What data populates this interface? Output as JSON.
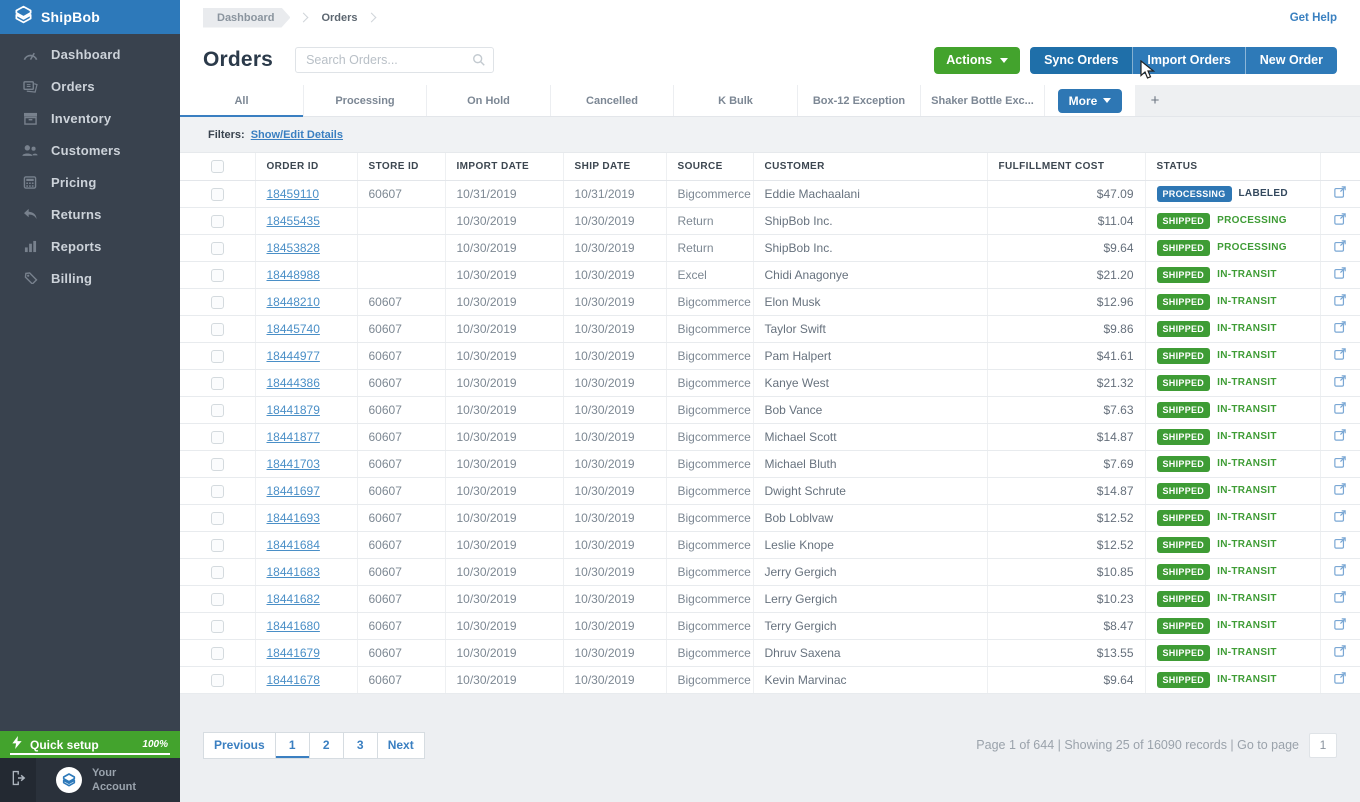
{
  "brand": {
    "name": "ShipBob"
  },
  "colors": {
    "brand_blue": "#2d79ba",
    "sidebar_dark": "#39424e",
    "green": "#43a32d",
    "badge_green": "#3e9c35",
    "badge_blue": "#2e77b4",
    "link_blue": "#3a80c0",
    "tab_underline": "#3a7fc1",
    "bg_gray": "#edeff2"
  },
  "sidebar": {
    "items": [
      {
        "label": "Dashboard",
        "icon": "gauge-icon"
      },
      {
        "label": "Orders",
        "icon": "orders-icon"
      },
      {
        "label": "Inventory",
        "icon": "inventory-icon"
      },
      {
        "label": "Customers",
        "icon": "customers-icon"
      },
      {
        "label": "Pricing",
        "icon": "pricing-icon"
      },
      {
        "label": "Returns",
        "icon": "returns-icon"
      },
      {
        "label": "Reports",
        "icon": "reports-icon"
      },
      {
        "label": "Billing",
        "icon": "billing-icon"
      }
    ],
    "quick_setup": {
      "label": "Quick setup",
      "progress": "100%"
    },
    "account": {
      "line1": "Your",
      "line2": "Account"
    }
  },
  "topbar": {
    "breadcrumb": {
      "first": "Dashboard",
      "current": "Orders"
    },
    "get_help": "Get Help"
  },
  "header": {
    "title": "Orders",
    "search_placeholder": "Search Orders...",
    "actions_label": "Actions",
    "sync_label": "Sync Orders",
    "import_label": "Import Orders",
    "new_label": "New Order"
  },
  "tabs": {
    "items": [
      "All",
      "Processing",
      "On Hold",
      "Cancelled",
      "K Bulk",
      "Box-12 Exception",
      "Shaker Bottle Exc..."
    ],
    "active_index": 0,
    "more_label": "More",
    "add_label": "+"
  },
  "filters": {
    "label": "Filters:",
    "link": "Show/Edit Details"
  },
  "table": {
    "columns": [
      "",
      "ORDER ID",
      "STORE ID",
      "IMPORT DATE",
      "SHIP DATE",
      "SOURCE",
      "CUSTOMER",
      "FULFILLMENT COST",
      "STATUS",
      ""
    ],
    "rows": [
      {
        "order_id": "18459110",
        "store_id": "60607",
        "import_date": "10/31/2019",
        "ship_date": "10/31/2019",
        "source": "Bigcommerce",
        "customer": "Eddie Machaalani",
        "cost": "$47.09",
        "badge": "PROCESSING",
        "badge_color": "blue",
        "status": "LABELED",
        "status_color": "dark"
      },
      {
        "order_id": "18455435",
        "store_id": "",
        "import_date": "10/30/2019",
        "ship_date": "10/30/2019",
        "source": "Return",
        "customer": "ShipBob Inc.",
        "cost": "$11.04",
        "badge": "SHIPPED",
        "badge_color": "green",
        "status": "PROCESSING",
        "status_color": "green"
      },
      {
        "order_id": "18453828",
        "store_id": "",
        "import_date": "10/30/2019",
        "ship_date": "10/30/2019",
        "source": "Return",
        "customer": "ShipBob Inc.",
        "cost": "$9.64",
        "badge": "SHIPPED",
        "badge_color": "green",
        "status": "PROCESSING",
        "status_color": "green"
      },
      {
        "order_id": "18448988",
        "store_id": "",
        "import_date": "10/30/2019",
        "ship_date": "10/30/2019",
        "source": "Excel",
        "customer": "Chidi Anagonye",
        "cost": "$21.20",
        "badge": "SHIPPED",
        "badge_color": "green",
        "status": "IN-TRANSIT",
        "status_color": "green"
      },
      {
        "order_id": "18448210",
        "store_id": "60607",
        "import_date": "10/30/2019",
        "ship_date": "10/30/2019",
        "source": "Bigcommerce",
        "customer": "Elon Musk",
        "cost": "$12.96",
        "badge": "SHIPPED",
        "badge_color": "green",
        "status": "IN-TRANSIT",
        "status_color": "green"
      },
      {
        "order_id": "18445740",
        "store_id": "60607",
        "import_date": "10/30/2019",
        "ship_date": "10/30/2019",
        "source": "Bigcommerce",
        "customer": "Taylor Swift",
        "cost": "$9.86",
        "badge": "SHIPPED",
        "badge_color": "green",
        "status": "IN-TRANSIT",
        "status_color": "green"
      },
      {
        "order_id": "18444977",
        "store_id": "60607",
        "import_date": "10/30/2019",
        "ship_date": "10/30/2019",
        "source": "Bigcommerce",
        "customer": "Pam Halpert",
        "cost": "$41.61",
        "badge": "SHIPPED",
        "badge_color": "green",
        "status": "IN-TRANSIT",
        "status_color": "green"
      },
      {
        "order_id": "18444386",
        "store_id": "60607",
        "import_date": "10/30/2019",
        "ship_date": "10/30/2019",
        "source": "Bigcommerce",
        "customer": "Kanye West",
        "cost": "$21.32",
        "badge": "SHIPPED",
        "badge_color": "green",
        "status": "IN-TRANSIT",
        "status_color": "green"
      },
      {
        "order_id": "18441879",
        "store_id": "60607",
        "import_date": "10/30/2019",
        "ship_date": "10/30/2019",
        "source": "Bigcommerce",
        "customer": "Bob Vance",
        "cost": "$7.63",
        "badge": "SHIPPED",
        "badge_color": "green",
        "status": "IN-TRANSIT",
        "status_color": "green"
      },
      {
        "order_id": "18441877",
        "store_id": "60607",
        "import_date": "10/30/2019",
        "ship_date": "10/30/2019",
        "source": "Bigcommerce",
        "customer": "Michael Scott",
        "cost": "$14.87",
        "badge": "SHIPPED",
        "badge_color": "green",
        "status": "IN-TRANSIT",
        "status_color": "green"
      },
      {
        "order_id": "18441703",
        "store_id": "60607",
        "import_date": "10/30/2019",
        "ship_date": "10/30/2019",
        "source": "Bigcommerce",
        "customer": "Michael Bluth",
        "cost": "$7.69",
        "badge": "SHIPPED",
        "badge_color": "green",
        "status": "IN-TRANSIT",
        "status_color": "green"
      },
      {
        "order_id": "18441697",
        "store_id": "60607",
        "import_date": "10/30/2019",
        "ship_date": "10/30/2019",
        "source": "Bigcommerce",
        "customer": "Dwight Schrute",
        "cost": "$14.87",
        "badge": "SHIPPED",
        "badge_color": "green",
        "status": "IN-TRANSIT",
        "status_color": "green"
      },
      {
        "order_id": "18441693",
        "store_id": "60607",
        "import_date": "10/30/2019",
        "ship_date": "10/30/2019",
        "source": "Bigcommerce",
        "customer": "Bob Loblvaw",
        "cost": "$12.52",
        "badge": "SHIPPED",
        "badge_color": "green",
        "status": "IN-TRANSIT",
        "status_color": "green"
      },
      {
        "order_id": "18441684",
        "store_id": "60607",
        "import_date": "10/30/2019",
        "ship_date": "10/30/2019",
        "source": "Bigcommerce",
        "customer": "Leslie Knope",
        "cost": "$12.52",
        "badge": "SHIPPED",
        "badge_color": "green",
        "status": "IN-TRANSIT",
        "status_color": "green"
      },
      {
        "order_id": "18441683",
        "store_id": "60607",
        "import_date": "10/30/2019",
        "ship_date": "10/30/2019",
        "source": "Bigcommerce",
        "customer": "Jerry Gergich",
        "cost": "$10.85",
        "badge": "SHIPPED",
        "badge_color": "green",
        "status": "IN-TRANSIT",
        "status_color": "green"
      },
      {
        "order_id": "18441682",
        "store_id": "60607",
        "import_date": "10/30/2019",
        "ship_date": "10/30/2019",
        "source": "Bigcommerce",
        "customer": "Lerry Gergich",
        "cost": "$10.23",
        "badge": "SHIPPED",
        "badge_color": "green",
        "status": "IN-TRANSIT",
        "status_color": "green"
      },
      {
        "order_id": "18441680",
        "store_id": "60607",
        "import_date": "10/30/2019",
        "ship_date": "10/30/2019",
        "source": "Bigcommerce",
        "customer": "Terry Gergich",
        "cost": "$8.47",
        "badge": "SHIPPED",
        "badge_color": "green",
        "status": "IN-TRANSIT",
        "status_color": "green"
      },
      {
        "order_id": "18441679",
        "store_id": "60607",
        "import_date": "10/30/2019",
        "ship_date": "10/30/2019",
        "source": "Bigcommerce",
        "customer": "Dhruv Saxena",
        "cost": "$13.55",
        "badge": "SHIPPED",
        "badge_color": "green",
        "status": "IN-TRANSIT",
        "status_color": "green"
      },
      {
        "order_id": "18441678",
        "store_id": "60607",
        "import_date": "10/30/2019",
        "ship_date": "10/30/2019",
        "source": "Bigcommerce",
        "customer": "Kevin Marvinac",
        "cost": "$9.64",
        "badge": "SHIPPED",
        "badge_color": "green",
        "status": "IN-TRANSIT",
        "status_color": "green"
      }
    ]
  },
  "pagination": {
    "previous": "Previous",
    "pages": [
      "1",
      "2",
      "3"
    ],
    "active_page": "1",
    "next": "Next",
    "summary": "Page 1 of 644 | Showing 25 of 16090 records | Go to page",
    "goto_value": "1"
  }
}
